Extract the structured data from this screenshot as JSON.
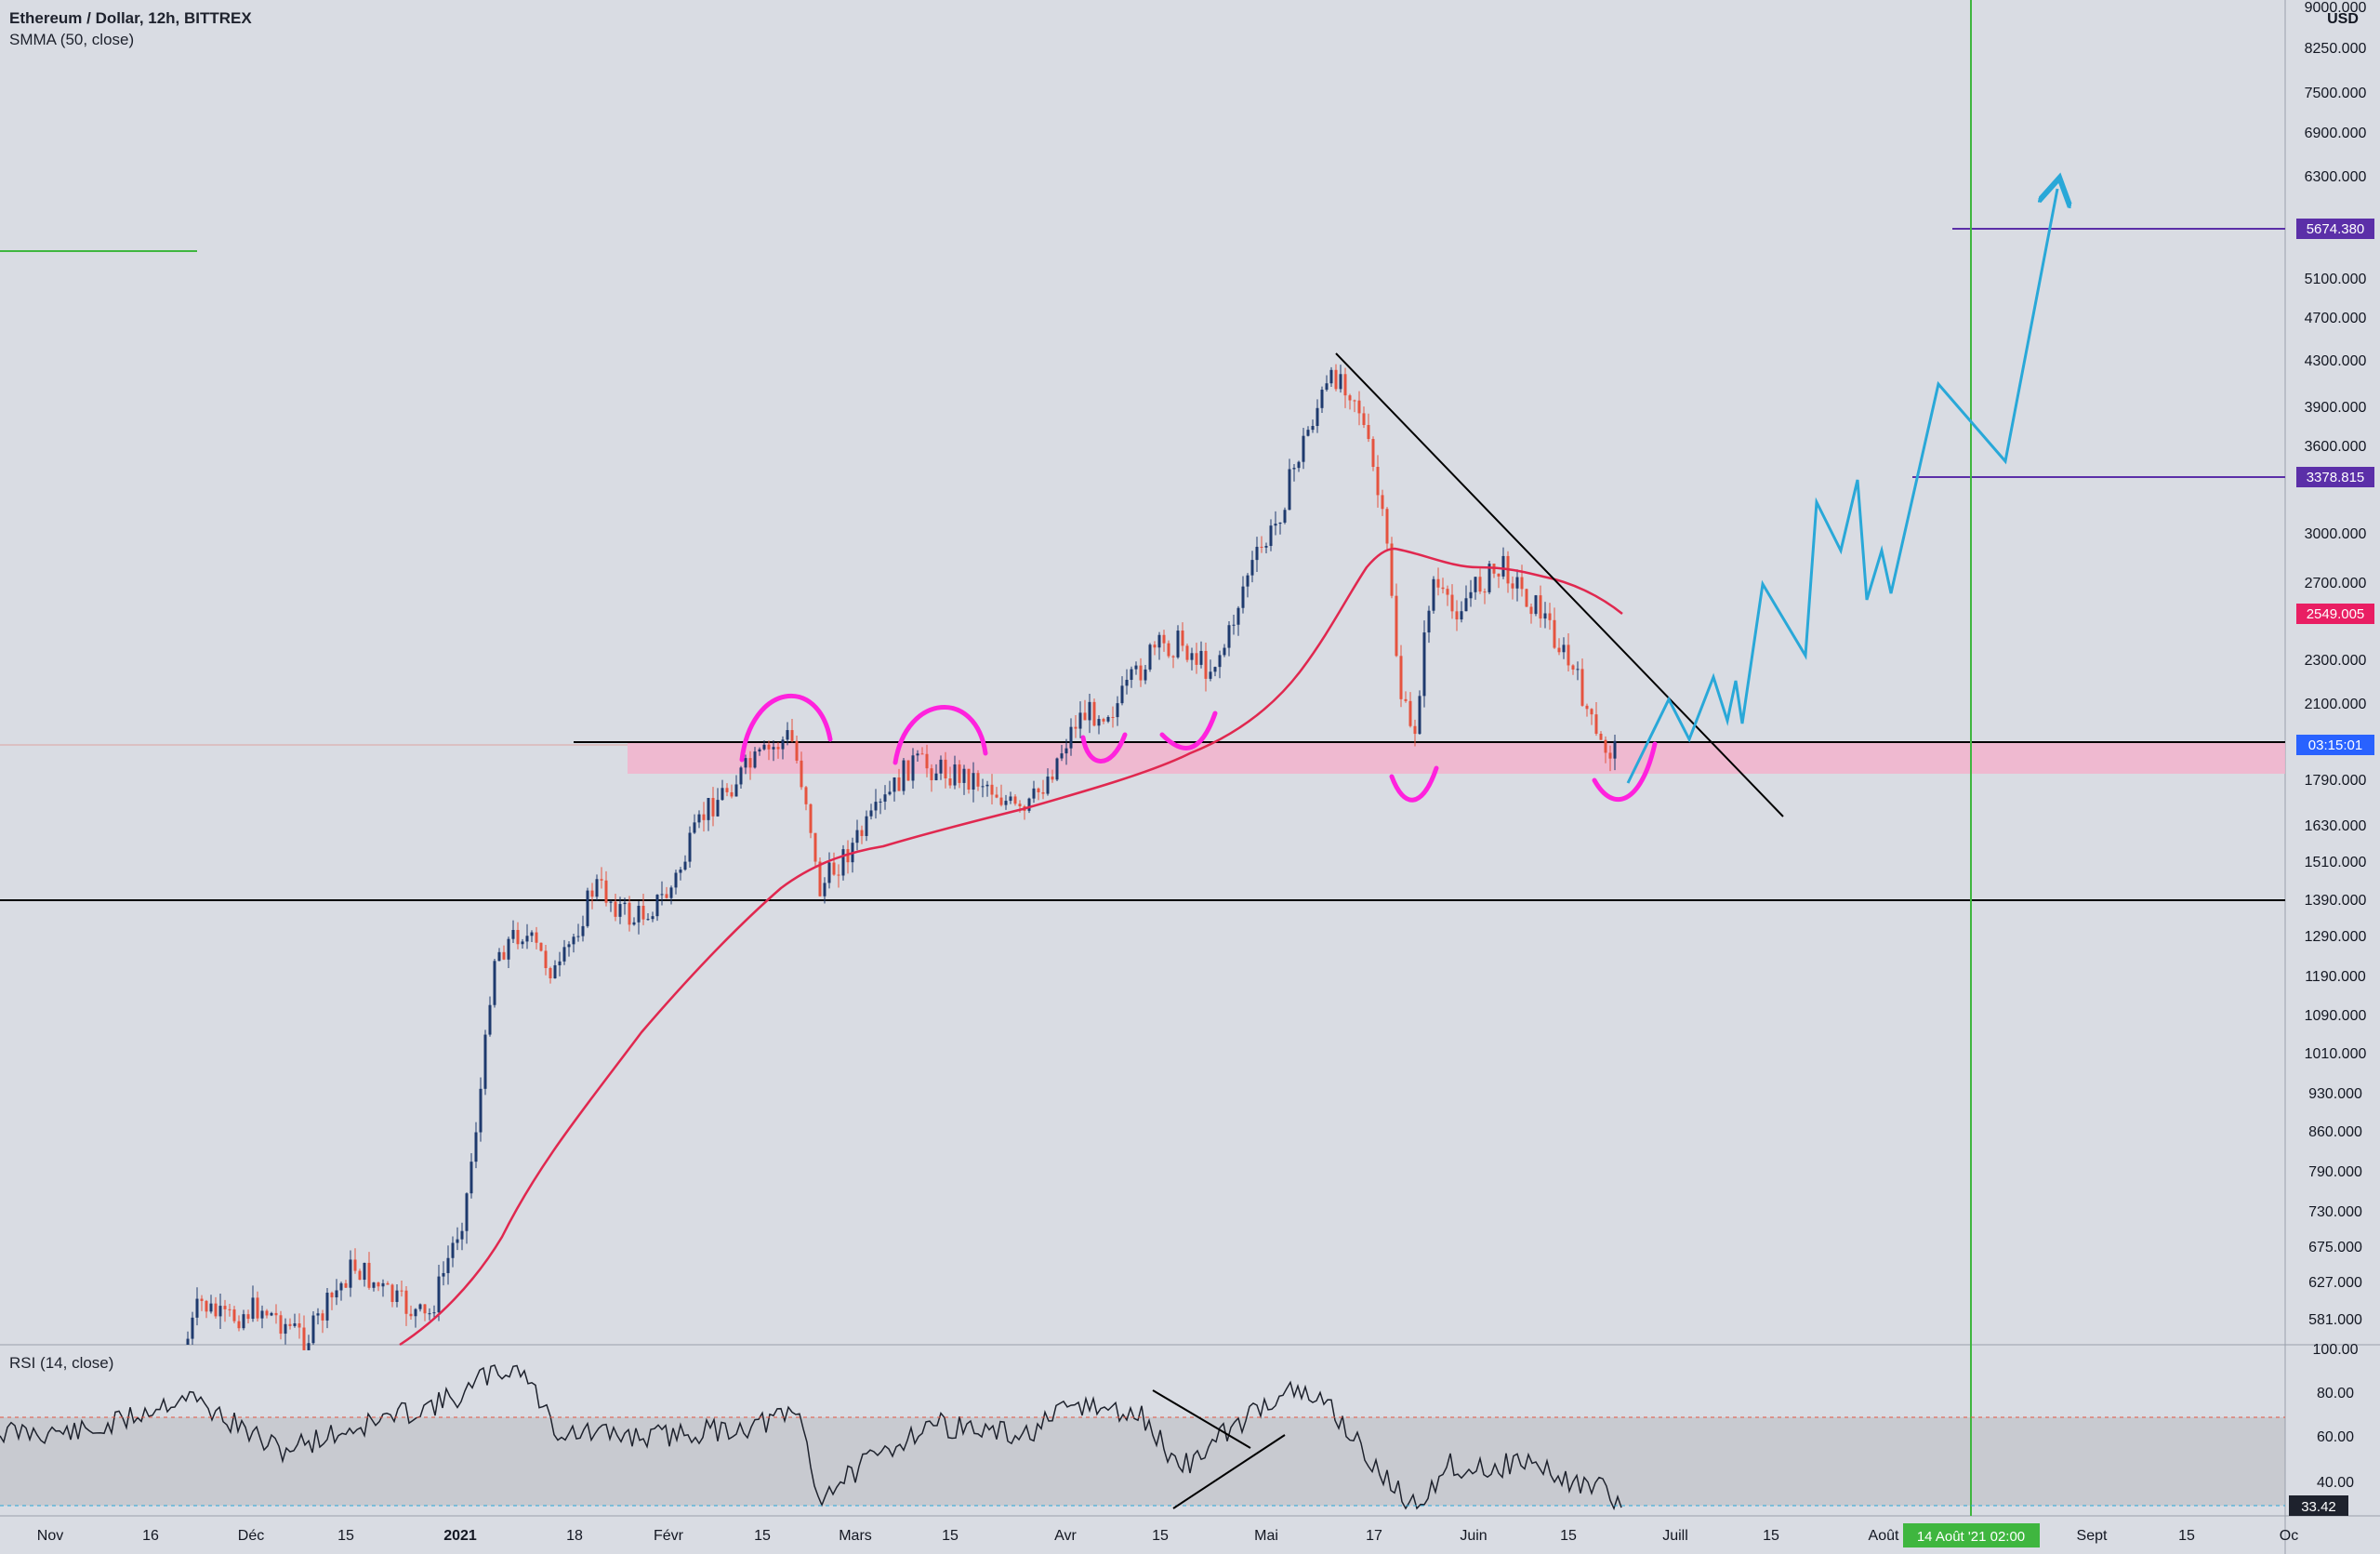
{
  "header": {
    "symbol": "Ethereum / Dollar, 12h, BITTREX",
    "indicator": "SMMA (50, close)",
    "currency": "USD"
  },
  "rsi": {
    "label": "RSI (14, close)",
    "value_badge": "33.42",
    "ticks": [
      "100.00",
      "80.00",
      "60.00",
      "40.00"
    ],
    "upper_band": 70,
    "lower_band": 30
  },
  "price_axis": {
    "ticks": [
      "9000.000",
      "8250.000",
      "7500.000",
      "6900.000",
      "6300.000",
      "5674.380",
      "5100.000",
      "4700.000",
      "4300.000",
      "3900.000",
      "3600.000",
      "3378.815",
      "3000.000",
      "2700.000",
      "2549.005",
      "2300.000",
      "2100.000",
      "03:15:01",
      "1790.000",
      "1630.000",
      "1510.000",
      "1390.000",
      "1290.000",
      "1190.000",
      "1090.000",
      "1010.000",
      "930.000",
      "860.000",
      "790.000",
      "730.000",
      "675.000",
      "627.000",
      "581.000"
    ],
    "badges": [
      {
        "label": "5674.380",
        "color": "#5b2fa8"
      },
      {
        "label": "3378.815",
        "color": "#5b2fa8"
      },
      {
        "label": "2549.005",
        "color": "#e91e63"
      },
      {
        "label": "03:15:01",
        "color": "#2962ff"
      }
    ]
  },
  "time_axis": {
    "ticks": [
      "Nov",
      "16",
      "Déc",
      "15",
      "2021",
      "18",
      "Févr",
      "15",
      "Mars",
      "15",
      "Avr",
      "15",
      "Mai",
      "17",
      "Juin",
      "15",
      "Juill",
      "15",
      "Août",
      "Sept",
      "15",
      "Oc"
    ],
    "crosshair_label": "14 Août '21   02:00"
  },
  "colors": {
    "background": "#d9dce3",
    "candle_up": "#1e3a6e",
    "candle_down": "#e5533f",
    "smma": "#e0284f",
    "projection": "#29a8d8",
    "pattern": "#ff22dd",
    "support_zone": "#f2b3cc",
    "crosshair": "#3fb63f",
    "target_line": "#5b2fa8",
    "trendline": "#000000"
  },
  "chart_data": {
    "type": "line",
    "title": "Ethereum / Dollar, 12h, BITTREX",
    "ylabel": "USD",
    "scale": "log",
    "ylim": [
      560,
      9100
    ],
    "price_path": {
      "x": [
        "2020-11-10",
        "2020-11-25",
        "2020-12-10",
        "2020-12-25",
        "2021-01-05",
        "2021-01-12",
        "2021-01-20",
        "2021-02-05",
        "2021-02-20",
        "2021-02-28",
        "2021-03-10",
        "2021-03-25",
        "2021-04-05",
        "2021-04-15",
        "2021-04-25",
        "2021-05-05",
        "2021-05-12",
        "2021-05-19",
        "2021-05-24",
        "2021-06-01",
        "2021-06-10",
        "2021-06-20",
        "2021-06-22"
      ],
      "values": [
        560,
        600,
        580,
        640,
        1050,
        1250,
        1300,
        1650,
        1950,
        1450,
        1850,
        1620,
        2100,
        2450,
        2300,
        3300,
        4200,
        2200,
        2500,
        2700,
        2550,
        2200,
        1850
      ]
    },
    "smma": {
      "name": "SMMA (50, close)",
      "x": [
        "2020-12-20",
        "2021-01-10",
        "2021-01-25",
        "2021-02-10",
        "2021-02-25",
        "2021-03-15",
        "2021-04-01",
        "2021-04-20",
        "2021-05-05",
        "2021-05-15",
        "2021-06-01",
        "2021-06-20"
      ],
      "values": [
        560,
        800,
        1050,
        1300,
        1500,
        1560,
        1700,
        1950,
        2300,
        2900,
        2750,
        2500
      ]
    },
    "projection": {
      "x": [
        "2021-06-23",
        "2021-06-28",
        "2021-07-01",
        "2021-07-05",
        "2021-07-07",
        "2021-07-09",
        "2021-07-11",
        "2021-07-18",
        "2021-07-20",
        "2021-07-24",
        "2021-07-26",
        "2021-07-27",
        "2021-07-29",
        "2021-08-02",
        "2021-08-05",
        "2021-08-09",
        "2021-08-16",
        "2021-08-23"
      ],
      "values": [
        1790,
        2100,
        1950,
        2200,
        2000,
        2300,
        2750,
        2350,
        3150,
        2850,
        3350,
        2600,
        2900,
        2700,
        4100,
        3500,
        6200,
        5900
      ]
    },
    "levels": [
      {
        "name": "target",
        "value": 5674.38
      },
      {
        "name": "target",
        "value": 3378.815
      },
      {
        "name": "resistance",
        "value": 1930
      },
      {
        "name": "support",
        "value": 1390
      }
    ],
    "support_zone": [
      1800,
      1900
    ],
    "rsi_last": 33.42
  }
}
